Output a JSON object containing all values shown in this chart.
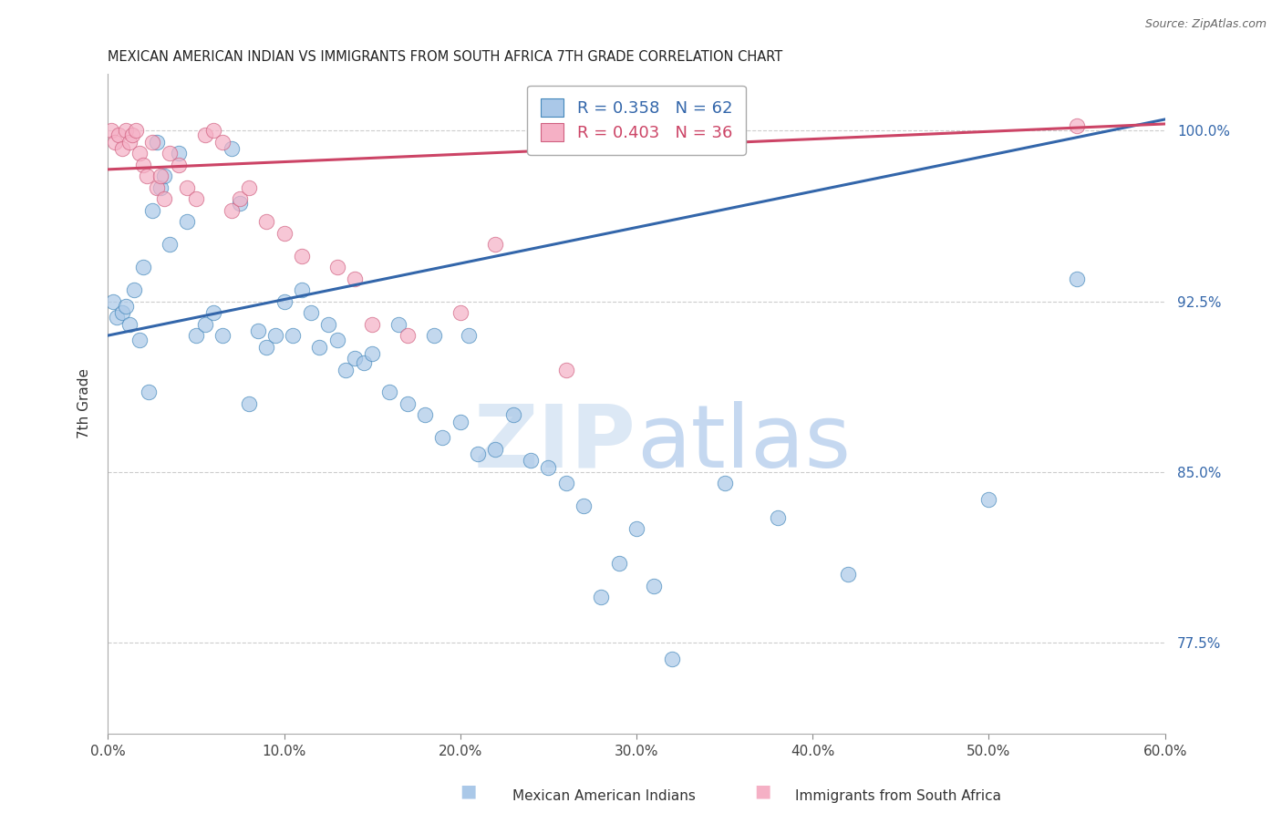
{
  "title": "MEXICAN AMERICAN INDIAN VS IMMIGRANTS FROM SOUTH AFRICA 7TH GRADE CORRELATION CHART",
  "source": "Source: ZipAtlas.com",
  "ylabel": "7th Grade",
  "x_tick_labels": [
    "0.0%",
    "10.0%",
    "20.0%",
    "30.0%",
    "40.0%",
    "50.0%",
    "60.0%"
  ],
  "x_tick_vals": [
    0.0,
    10.0,
    20.0,
    30.0,
    40.0,
    50.0,
    60.0
  ],
  "y_tick_labels": [
    "77.5%",
    "85.0%",
    "92.5%",
    "100.0%"
  ],
  "y_tick_vals": [
    77.5,
    85.0,
    92.5,
    100.0
  ],
  "xlim": [
    0.0,
    60.0
  ],
  "ylim": [
    73.5,
    102.5
  ],
  "legend_blue_r": "R = 0.358",
  "legend_blue_n": "N = 62",
  "legend_pink_r": "R = 0.403",
  "legend_pink_n": "N = 36",
  "blue_scatter_color": "#aac8e8",
  "blue_edge_color": "#4488bb",
  "pink_scatter_color": "#f5b0c5",
  "pink_edge_color": "#d06080",
  "blue_line_color": "#3366aa",
  "pink_line_color": "#cc4466",
  "watermark_zip": "#dce8f5",
  "watermark_atlas": "#c5d8f0",
  "blue_line_x": [
    0.0,
    60.0
  ],
  "blue_line_y": [
    91.0,
    100.5
  ],
  "pink_line_x": [
    0.0,
    60.0
  ],
  "pink_line_y": [
    98.3,
    100.3
  ],
  "blue_x": [
    0.3,
    0.5,
    0.8,
    1.0,
    1.2,
    1.5,
    1.8,
    2.0,
    2.3,
    2.5,
    2.8,
    3.0,
    3.2,
    3.5,
    4.0,
    4.5,
    5.0,
    5.5,
    6.0,
    6.5,
    7.0,
    7.5,
    8.0,
    8.5,
    9.0,
    9.5,
    10.0,
    10.5,
    11.0,
    11.5,
    12.0,
    12.5,
    13.0,
    13.5,
    14.0,
    14.5,
    15.0,
    16.0,
    16.5,
    17.0,
    18.0,
    18.5,
    19.0,
    20.0,
    20.5,
    21.0,
    22.0,
    23.0,
    24.0,
    25.0,
    26.0,
    27.0,
    28.0,
    29.0,
    30.0,
    31.0,
    32.0,
    35.0,
    38.0,
    42.0,
    50.0,
    55.0
  ],
  "blue_y": [
    92.5,
    91.8,
    92.0,
    92.3,
    91.5,
    93.0,
    90.8,
    94.0,
    88.5,
    96.5,
    99.5,
    97.5,
    98.0,
    95.0,
    99.0,
    96.0,
    91.0,
    91.5,
    92.0,
    91.0,
    99.2,
    96.8,
    88.0,
    91.2,
    90.5,
    91.0,
    92.5,
    91.0,
    93.0,
    92.0,
    90.5,
    91.5,
    90.8,
    89.5,
    90.0,
    89.8,
    90.2,
    88.5,
    91.5,
    88.0,
    87.5,
    91.0,
    86.5,
    87.2,
    91.0,
    85.8,
    86.0,
    87.5,
    85.5,
    85.2,
    84.5,
    83.5,
    79.5,
    81.0,
    82.5,
    80.0,
    76.8,
    84.5,
    83.0,
    80.5,
    83.8,
    93.5
  ],
  "pink_x": [
    0.2,
    0.4,
    0.6,
    0.8,
    1.0,
    1.2,
    1.4,
    1.6,
    1.8,
    2.0,
    2.2,
    2.5,
    2.8,
    3.0,
    3.2,
    3.5,
    4.0,
    4.5,
    5.0,
    5.5,
    6.0,
    6.5,
    7.0,
    7.5,
    8.0,
    9.0,
    10.0,
    11.0,
    13.0,
    14.0,
    15.0,
    17.0,
    20.0,
    22.0,
    26.0,
    55.0
  ],
  "pink_y": [
    100.0,
    99.5,
    99.8,
    99.2,
    100.0,
    99.5,
    99.8,
    100.0,
    99.0,
    98.5,
    98.0,
    99.5,
    97.5,
    98.0,
    97.0,
    99.0,
    98.5,
    97.5,
    97.0,
    99.8,
    100.0,
    99.5,
    96.5,
    97.0,
    97.5,
    96.0,
    95.5,
    94.5,
    94.0,
    93.5,
    91.5,
    91.0,
    92.0,
    95.0,
    89.5,
    100.2
  ]
}
